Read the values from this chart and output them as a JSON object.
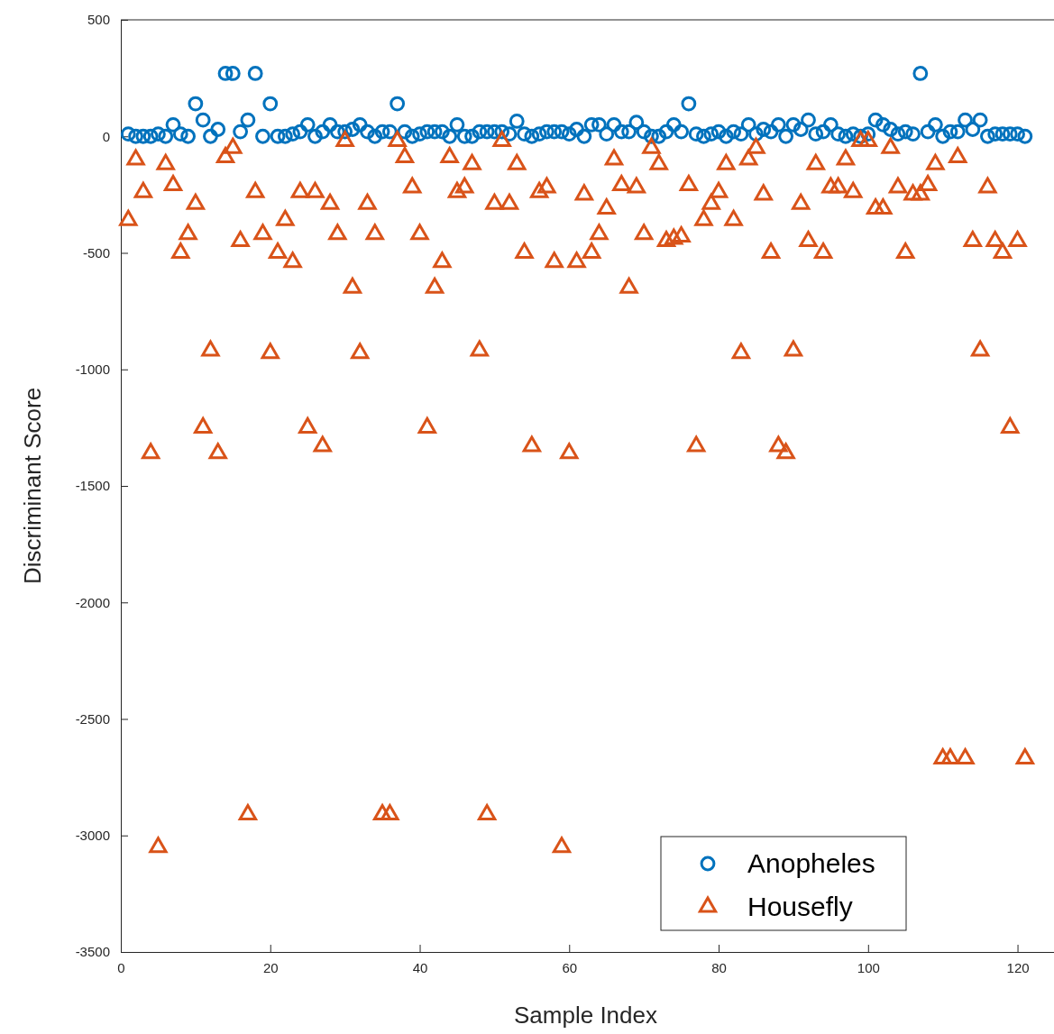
{
  "chart_data": {
    "type": "scatter",
    "xlabel": "Sample Index",
    "ylabel": "Discriminant Score",
    "xlim": [
      0,
      125
    ],
    "ylim": [
      -3500,
      500
    ],
    "xticks": [
      0,
      20,
      40,
      60,
      80,
      100,
      120
    ],
    "yticks": [
      -3500,
      -3000,
      -2500,
      -2000,
      -1500,
      -1000,
      -500,
      0,
      500
    ],
    "grid": false,
    "legend": "bottom right",
    "series": [
      {
        "name": "Anopheles",
        "color": "#0072bd",
        "marker": "circle",
        "x": [
          1,
          2,
          3,
          4,
          5,
          6,
          7,
          8,
          9,
          10,
          11,
          12,
          13,
          14,
          15,
          16,
          17,
          18,
          19,
          20,
          21,
          22,
          23,
          24,
          25,
          26,
          27,
          28,
          29,
          30,
          31,
          32,
          33,
          34,
          35,
          36,
          37,
          38,
          39,
          40,
          41,
          42,
          43,
          44,
          45,
          46,
          47,
          48,
          49,
          50,
          51,
          52,
          53,
          54,
          55,
          56,
          57,
          58,
          59,
          60,
          61,
          62,
          63,
          64,
          65,
          66,
          67,
          68,
          69,
          70,
          71,
          72,
          73,
          74,
          75,
          76,
          77,
          78,
          79,
          80,
          81,
          82,
          83,
          84,
          85,
          86,
          87,
          88,
          89,
          90,
          91,
          92,
          93,
          94,
          95,
          96,
          97,
          98,
          99,
          100,
          101,
          102,
          103,
          104,
          105,
          106,
          107,
          108,
          109,
          110,
          111,
          112,
          113,
          114,
          115,
          116,
          117,
          118,
          119,
          120,
          121
        ],
        "values": [
          10,
          0,
          0,
          0,
          10,
          0,
          50,
          10,
          0,
          140,
          70,
          0,
          30,
          270,
          270,
          20,
          70,
          270,
          0,
          140,
          0,
          0,
          10,
          20,
          50,
          0,
          20,
          50,
          20,
          20,
          30,
          50,
          20,
          0,
          20,
          20,
          140,
          20,
          0,
          10,
          20,
          20,
          20,
          0,
          50,
          0,
          0,
          20,
          20,
          20,
          20,
          10,
          65,
          10,
          0,
          10,
          20,
          20,
          20,
          10,
          30,
          0,
          50,
          50,
          10,
          50,
          20,
          20,
          60,
          20,
          0,
          0,
          20,
          50,
          20,
          140,
          10,
          0,
          10,
          20,
          0,
          20,
          10,
          50,
          10,
          30,
          20,
          50,
          0,
          50,
          30,
          70,
          10,
          20,
          50,
          10,
          0,
          10,
          0,
          10,
          70,
          50,
          30,
          10,
          20,
          10,
          270,
          20,
          50,
          0,
          20,
          20,
          70,
          30,
          70,
          0,
          10,
          10,
          10,
          10,
          0
        ]
      },
      {
        "name": "Housefly",
        "color": "#d95319",
        "marker": "triangle",
        "x": [
          1,
          2,
          3,
          4,
          5,
          6,
          7,
          8,
          9,
          10,
          11,
          12,
          13,
          14,
          15,
          16,
          17,
          18,
          19,
          20,
          21,
          22,
          23,
          24,
          25,
          26,
          27,
          28,
          29,
          30,
          31,
          32,
          33,
          34,
          35,
          36,
          37,
          38,
          39,
          40,
          41,
          42,
          43,
          44,
          45,
          46,
          47,
          48,
          49,
          50,
          51,
          52,
          53,
          54,
          55,
          56,
          57,
          58,
          59,
          60,
          61,
          62,
          63,
          64,
          65,
          66,
          67,
          68,
          69,
          70,
          71,
          72,
          73,
          74,
          75,
          76,
          77,
          78,
          79,
          80,
          81,
          82,
          83,
          84,
          85,
          86,
          87,
          88,
          89,
          90,
          91,
          92,
          93,
          94,
          95,
          96,
          97,
          98,
          99,
          100,
          101,
          102,
          103,
          104,
          105,
          106,
          107,
          108,
          109,
          110,
          111,
          112,
          113,
          114,
          115,
          116,
          117,
          118,
          119,
          120,
          121
        ],
        "values": [
          -360,
          -100,
          -240,
          -1360,
          -3050,
          -120,
          -210,
          -500,
          -420,
          -290,
          -1250,
          -920,
          -1360,
          -90,
          -50,
          -450,
          -2910,
          -240,
          -420,
          -930,
          -500,
          -360,
          -540,
          -240,
          -1250,
          -240,
          -1330,
          -290,
          -420,
          -20,
          -650,
          -930,
          -290,
          -420,
          -2910,
          -2910,
          -20,
          -90,
          -220,
          -420,
          -1250,
          -650,
          -540,
          -90,
          -240,
          -220,
          -120,
          -920,
          -2910,
          -290,
          -20,
          -290,
          -120,
          -500,
          -1330,
          -240,
          -220,
          -540,
          -3050,
          -1360,
          -540,
          -250,
          -500,
          -420,
          -310,
          -100,
          -210,
          -650,
          -220,
          -420,
          -50,
          -120,
          -450,
          -440,
          -430,
          -210,
          -1330,
          -360,
          -290,
          -240,
          -120,
          -360,
          -930,
          -100,
          -50,
          -250,
          -500,
          -1330,
          -1360,
          -920,
          -290,
          -450,
          -120,
          -500,
          -220,
          -220,
          -100,
          -240,
          -20,
          -20,
          -310,
          -310,
          -50,
          -220,
          -500,
          -250,
          -250,
          -210,
          -120,
          -2670,
          -2670,
          -90,
          -2670,
          -450,
          -920,
          -220,
          -450,
          -500,
          -1250,
          -450,
          -2670
        ]
      }
    ]
  }
}
